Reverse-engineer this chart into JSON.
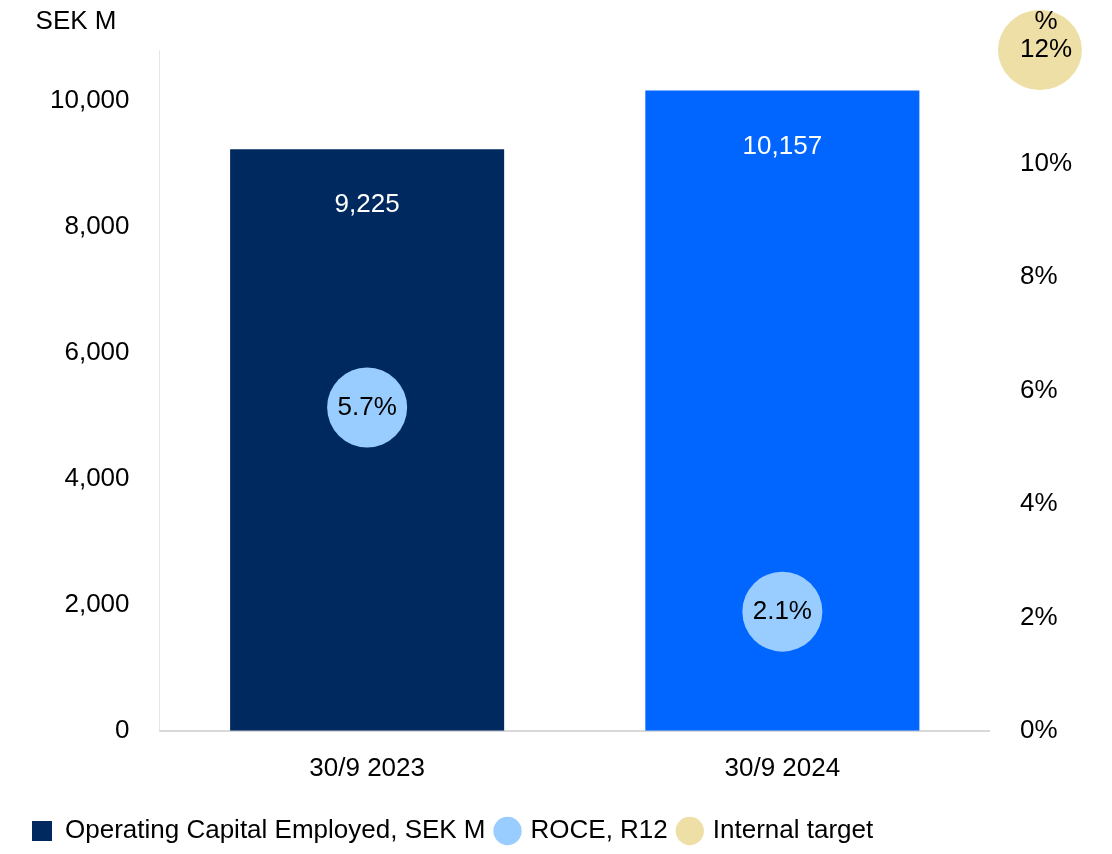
{
  "chart_data": {
    "type": "bar",
    "categories": [
      "30/9 2023",
      "30/9 2024"
    ],
    "ylabel": "SEK M",
    "y2label": "%",
    "ylim": [
      0,
      10800
    ],
    "yticks": [
      0,
      {
        "value": 2000,
        "label": "2,000"
      },
      {
        "value": 4000,
        "label": "4,000"
      },
      {
        "value": 6000,
        "label": "6,000"
      },
      {
        "value": 8000,
        "label": "8,000"
      },
      {
        "value": 10000,
        "label": "10,000"
      }
    ],
    "y2lim": [
      0,
      12
    ],
    "y2ticks": [
      {
        "value": 0,
        "label": "0%"
      },
      {
        "value": 2,
        "label": "2%"
      },
      {
        "value": 4,
        "label": "4%"
      },
      {
        "value": 6,
        "label": "6%"
      },
      {
        "value": 8,
        "label": "8%"
      },
      {
        "value": 10,
        "label": "10%"
      },
      {
        "value": 12,
        "label": "12%"
      }
    ],
    "series": [
      {
        "name": "Operating Capital Employed, SEK M",
        "colors": [
          "#002a5f",
          "#0066ff"
        ],
        "values": [
          9225,
          10157
        ],
        "value_labels": [
          "9,225",
          "10,157"
        ]
      },
      {
        "name": "ROCE, R12",
        "type": "scatter",
        "axis": "y2",
        "color": "#99ccff",
        "values": [
          5.7,
          2.1
        ],
        "value_labels": [
          "5.7%",
          "2.1%"
        ]
      },
      {
        "name": "Internal target",
        "type": "scatter",
        "axis": "y2",
        "color": "#eedfa6",
        "values": [
          null,
          null
        ]
      }
    ],
    "grid": false,
    "legend": "bottom",
    "marker": "circle"
  }
}
